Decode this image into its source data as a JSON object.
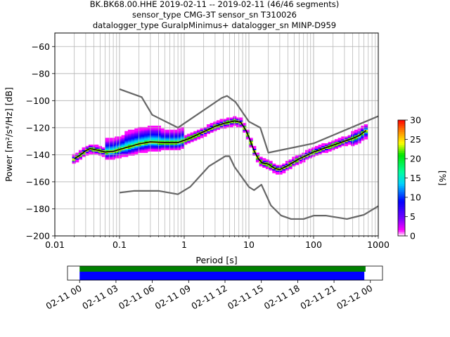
{
  "chart_data": [
    {
      "type": "heatmap",
      "title_lines": [
        "BK.BK68.00.HHE   2019-02-11 -- 2019-02-11  (46/46 segments)",
        "sensor_type CMG-3T sensor_sn T310026",
        "datalogger_type GuralpMinimus+ datalogger_sn MINP-D959"
      ],
      "xlabel": "Period [s]",
      "ylabel": "Power [m²/s⁴/Hz] [dB]",
      "x_scale": "log",
      "xlim": [
        0.01,
        1000
      ],
      "ylim": [
        -200,
        -50
      ],
      "x_ticks": [
        {
          "v": 0.01,
          "label": "0.01"
        },
        {
          "v": 0.1,
          "label": "0.1"
        },
        {
          "v": 1,
          "label": "1"
        },
        {
          "v": 10,
          "label": "10"
        },
        {
          "v": 100,
          "label": "100"
        },
        {
          "v": 1000,
          "label": "1000"
        }
      ],
      "y_ticks": [
        {
          "v": -60,
          "label": "−60"
        },
        {
          "v": -80,
          "label": "−80"
        },
        {
          "v": -100,
          "label": "−100"
        },
        {
          "v": -120,
          "label": "−120"
        },
        {
          "v": -140,
          "label": "−140"
        },
        {
          "v": -160,
          "label": "−160"
        },
        {
          "v": -180,
          "label": "−180"
        },
        {
          "v": -200,
          "label": "−200"
        }
      ],
      "grid": true,
      "colorbar": {
        "label": "[%]",
        "range": [
          0,
          30
        ],
        "ticks": [
          {
            "v": 0,
            "label": "0"
          },
          {
            "v": 5,
            "label": "5"
          },
          {
            "v": 10,
            "label": "10"
          },
          {
            "v": 15,
            "label": "15"
          },
          {
            "v": 20,
            "label": "20"
          },
          {
            "v": 25,
            "label": "25"
          },
          {
            "v": 30,
            "label": "30"
          }
        ]
      },
      "series": [
        {
          "role": "high-noise-model",
          "color": "#666666",
          "points": [
            [
              0.1,
              -91.5
            ],
            [
              0.22,
              -97.4
            ],
            [
              0.32,
              -110.5
            ],
            [
              0.8,
              -120
            ],
            [
              3.8,
              -98
            ],
            [
              4.6,
              -96.5
            ],
            [
              6.2,
              -101
            ],
            [
              10,
              -115.5
            ],
            [
              15,
              -120
            ],
            [
              20,
              -138.5
            ],
            [
              100,
              -131.6
            ],
            [
              1000,
              -111.5
            ]
          ]
        },
        {
          "role": "low-noise-model",
          "color": "#666666",
          "points": [
            [
              0.1,
              -168
            ],
            [
              0.17,
              -166.7
            ],
            [
              0.4,
              -166.7
            ],
            [
              0.8,
              -169.2
            ],
            [
              1.24,
              -163.7
            ],
            [
              2.4,
              -148.6
            ],
            [
              4.3,
              -141.1
            ],
            [
              5,
              -141.1
            ],
            [
              6,
              -149
            ],
            [
              10,
              -163.8
            ],
            [
              12,
              -166.2
            ],
            [
              15.6,
              -162.1
            ],
            [
              21.9,
              -177.5
            ],
            [
              31.6,
              -185
            ],
            [
              45,
              -187.5
            ],
            [
              70,
              -187.5
            ],
            [
              101,
              -185
            ],
            [
              154,
              -185
            ],
            [
              328,
              -187.5
            ],
            [
              600,
              -184.4
            ],
            [
              1000,
              -178
            ]
          ]
        },
        {
          "role": "median",
          "color": "#000000",
          "points": [
            [
              0.02,
              -143
            ],
            [
              0.025,
              -140
            ],
            [
              0.03,
              -137
            ],
            [
              0.035,
              -135.5
            ],
            [
              0.045,
              -136.5
            ],
            [
              0.06,
              -138
            ],
            [
              0.08,
              -137.5
            ],
            [
              0.12,
              -135
            ],
            [
              0.2,
              -132
            ],
            [
              0.3,
              -130.5
            ],
            [
              0.5,
              -131
            ],
            [
              0.8,
              -131
            ],
            [
              1.2,
              -128
            ],
            [
              2,
              -123
            ],
            [
              3,
              -119
            ],
            [
              4,
              -117
            ],
            [
              6,
              -115
            ],
            [
              7.5,
              -116
            ],
            [
              9,
              -122
            ],
            [
              10,
              -127
            ],
            [
              12,
              -137
            ],
            [
              14,
              -143
            ],
            [
              16,
              -146
            ],
            [
              20,
              -147
            ],
            [
              25,
              -150
            ],
            [
              30,
              -151
            ],
            [
              40,
              -148
            ],
            [
              60,
              -143
            ],
            [
              100,
              -138
            ],
            [
              150,
              -135
            ],
            [
              200,
              -133
            ],
            [
              300,
              -130
            ],
            [
              400,
              -128
            ],
            [
              500,
              -126
            ],
            [
              650,
              -122
            ]
          ]
        }
      ]
    },
    {
      "type": "timeline",
      "x_tick_labels": [
        "02-11 00",
        "02-11 03",
        "02-11 06",
        "02-11 09",
        "02-11 12",
        "02-11 15",
        "02-11 18",
        "02-11 21",
        "02-12 00"
      ],
      "x_range_hours": [
        -1,
        25
      ],
      "bars": [
        {
          "role": "data-availability",
          "color": "#008000",
          "start_h": 0,
          "end_h": 23.6
        },
        {
          "role": "psd-segments",
          "color": "#0000ff",
          "start_h": 0,
          "end_h": 23.5
        }
      ]
    }
  ]
}
